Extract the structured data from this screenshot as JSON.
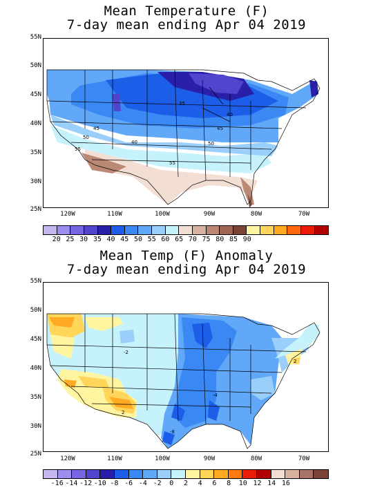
{
  "panels": [
    {
      "title_line1": "Mean Temperature (F)",
      "title_line2": "7-day mean ending Apr 04 2019",
      "lat_labels": [
        "55N",
        "50N",
        "45N",
        "40N",
        "35N",
        "30N",
        "25N"
      ],
      "lon_labels": [
        "120W",
        "110W",
        "100W",
        "90W",
        "80W",
        "70W"
      ],
      "contour_labels": [
        "35",
        "40",
        "45",
        "40",
        "45",
        "50",
        "50",
        "55",
        "55"
      ],
      "colorbar": {
        "colors": [
          "#c6b6f0",
          "#9e8ef0",
          "#7766e4",
          "#5244cc",
          "#2a1fa8",
          "#1c5ee8",
          "#3a88f4",
          "#62a8f8",
          "#9acffc",
          "#c6f2fc",
          "#f2ded2",
          "#d9b19f",
          "#bc8876",
          "#9e6552",
          "#7a4538",
          "#fff4a0",
          "#ffd65a",
          "#ffaa22",
          "#ff6a10",
          "#e81c08",
          "#b00000"
        ],
        "labels": [
          "20",
          "25",
          "30",
          "35",
          "40",
          "45",
          "50",
          "55",
          "60",
          "65",
          "70",
          "75",
          "80",
          "85",
          "90"
        ]
      }
    },
    {
      "title_line1": "Mean Temp (F) Anomaly",
      "title_line2": "7-day mean ending Apr 04 2019",
      "lat_labels": [
        "55N",
        "50N",
        "45N",
        "40N",
        "35N",
        "30N",
        "25N"
      ],
      "lon_labels": [
        "120W",
        "110W",
        "100W",
        "90W",
        "80W",
        "70W"
      ],
      "contour_labels": [
        "-2",
        "2",
        "-8",
        "-4",
        "2"
      ],
      "colorbar": {
        "colors": [
          "#c6b6f0",
          "#9e8ef0",
          "#7766e4",
          "#5244cc",
          "#2a1fa8",
          "#1c5ee8",
          "#3a88f4",
          "#62a8f8",
          "#9acffc",
          "#c6f2fc",
          "#fff4a0",
          "#ffd65a",
          "#ffaa22",
          "#ff7a10",
          "#e81c08",
          "#b00000",
          "#f2ded2",
          "#d9b19f",
          "#a87468",
          "#7a4538"
        ],
        "labels": [
          "-16",
          "-14",
          "-12",
          "-10",
          "-8",
          "-6",
          "-4",
          "-2",
          "0",
          "2",
          "4",
          "6",
          "8",
          "10",
          "12",
          "14",
          "16"
        ]
      }
    }
  ]
}
